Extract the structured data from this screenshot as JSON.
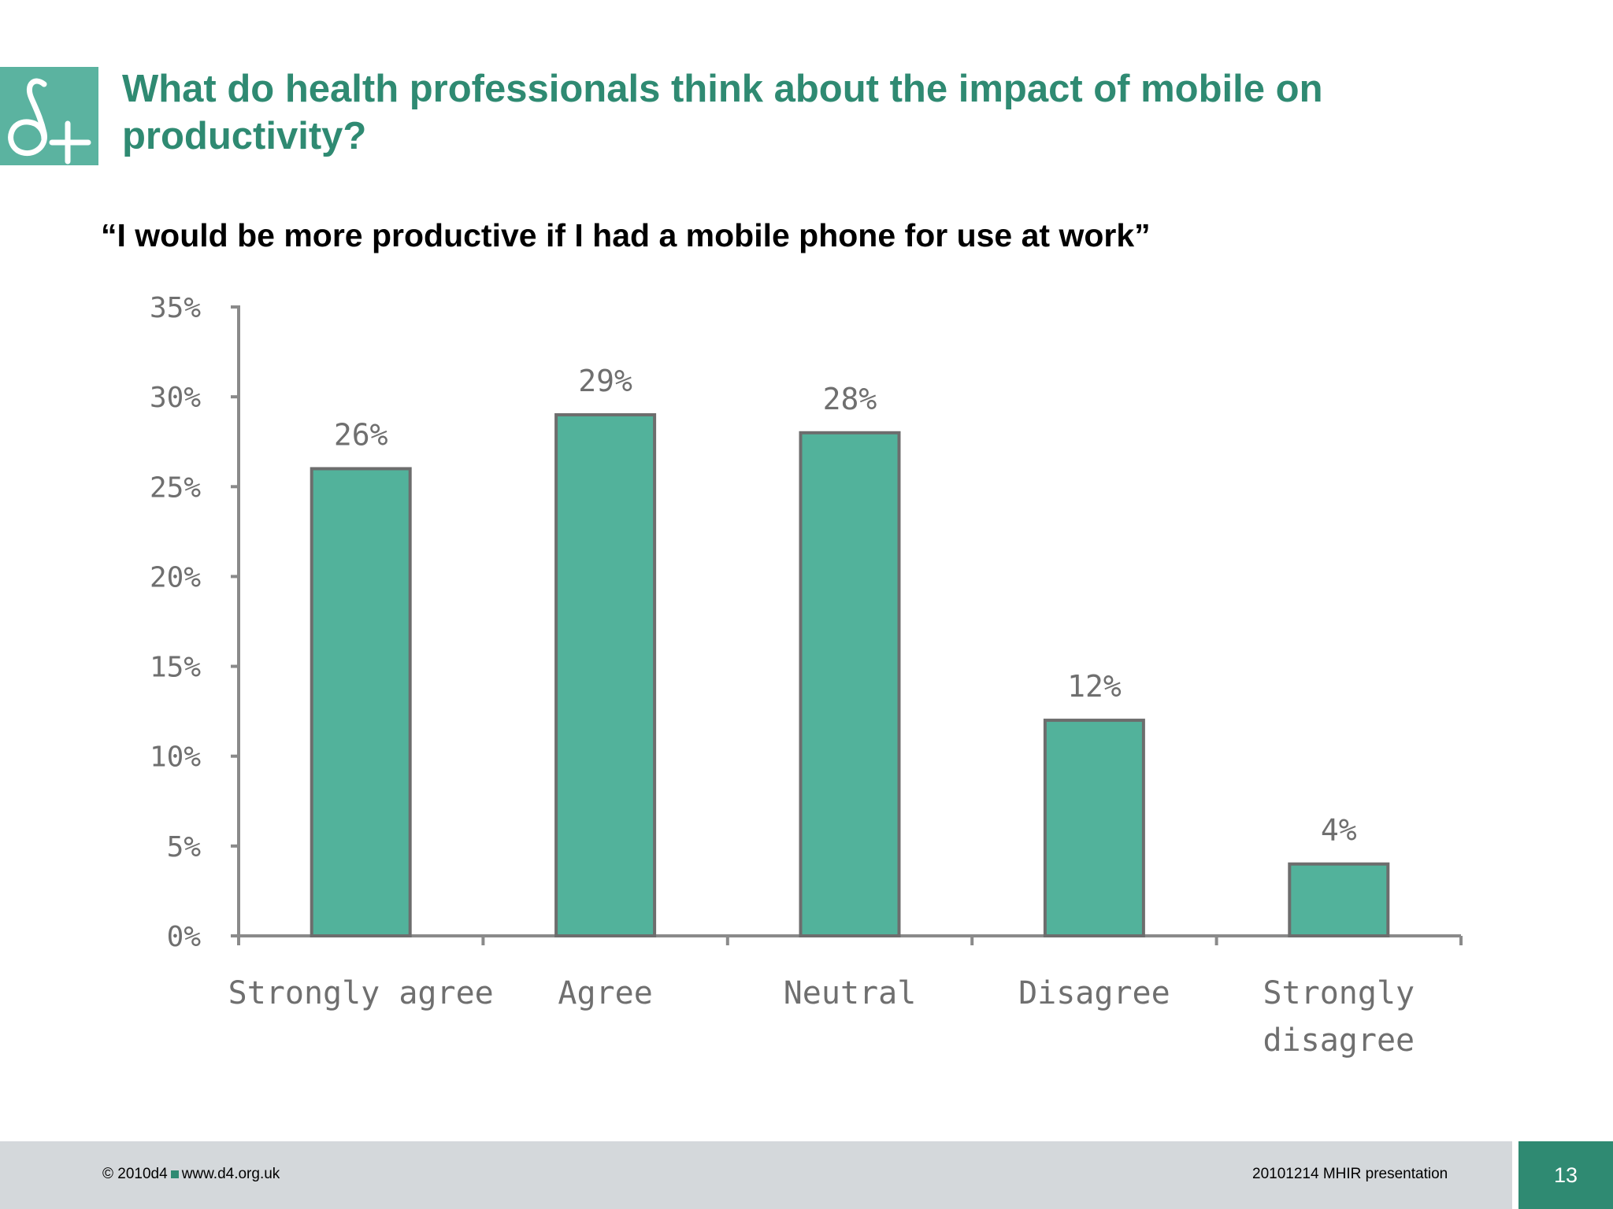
{
  "slide": {
    "title": "What do health professionals think about the impact of mobile on productivity?",
    "quote": "“I would be more productive if I had a mobile phone for use at work”"
  },
  "chart_data": {
    "type": "bar",
    "title": "",
    "categories": [
      "Strongly agree",
      "Agree",
      "Neutral",
      "Disagree",
      "Strongly disagree"
    ],
    "category_lines": [
      [
        "Strongly agree"
      ],
      [
        "Agree"
      ],
      [
        "Neutral"
      ],
      [
        "Disagree"
      ],
      [
        "Strongly",
        "disagree"
      ]
    ],
    "values": [
      26,
      29,
      28,
      12,
      4
    ],
    "value_labels": [
      "26%",
      "29%",
      "28%",
      "12%",
      "4%"
    ],
    "ylim": [
      0,
      35
    ],
    "yticks": [
      0,
      5,
      10,
      15,
      20,
      25,
      30,
      35
    ],
    "ytick_labels": [
      "0%",
      "5%",
      "10%",
      "15%",
      "20%",
      "25%",
      "30%",
      "35%"
    ],
    "xlabel": "",
    "ylabel": "",
    "grid": false,
    "bar_color": "#52b29b",
    "bar_edge_color": "#6d6d6d"
  },
  "footer": {
    "copyright": "© 2010d4",
    "website": "www.d4.org.uk",
    "presentation": "20101214 MHIR presentation",
    "page_number": "13"
  },
  "colors": {
    "brand_green": "#2f8a72",
    "logo_bg": "#5bb3a0",
    "footer_bg": "#d4d8db"
  }
}
